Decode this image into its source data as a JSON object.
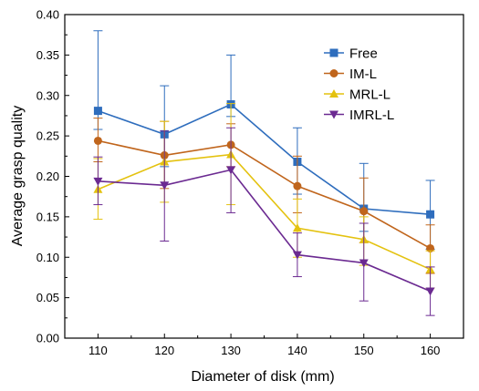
{
  "chart_data": {
    "type": "line",
    "xlabel": "Diameter of disk (mm)",
    "ylabel": "Average grasp quality",
    "x": [
      110,
      120,
      130,
      140,
      150,
      160
    ],
    "ylim": [
      0.0,
      0.4
    ],
    "yticks": [
      "0.00",
      "0.05",
      "0.10",
      "0.15",
      "0.20",
      "0.25",
      "0.30",
      "0.35",
      "0.40"
    ],
    "xticks": [
      "110",
      "120",
      "130",
      "140",
      "150",
      "160"
    ],
    "legend_position": "top-right",
    "grid": false,
    "series": [
      {
        "name": "Free",
        "color": "#2e6dbd",
        "marker": "square",
        "values": [
          0.281,
          0.252,
          0.289,
          0.218,
          0.16,
          0.153
        ],
        "err_low": [
          0.258,
          0.212,
          0.274,
          0.178,
          0.132,
          0.11
        ],
        "err_high": [
          0.38,
          0.312,
          0.35,
          0.26,
          0.216,
          0.195
        ]
      },
      {
        "name": "IM-L",
        "color": "#c0651c",
        "marker": "circle",
        "values": [
          0.244,
          0.226,
          0.239,
          0.188,
          0.157,
          0.111
        ],
        "err_low": [
          0.218,
          0.185,
          0.212,
          0.155,
          0.118,
          0.08
        ],
        "err_high": [
          0.272,
          0.268,
          0.265,
          0.225,
          0.198,
          0.14
        ]
      },
      {
        "name": "MRL-L",
        "color": "#e4c20f",
        "marker": "triangle-up",
        "values": [
          0.184,
          0.218,
          0.227,
          0.136,
          0.122,
          0.085
        ],
        "err_low": [
          0.147,
          0.168,
          0.165,
          0.1,
          0.09,
          0.062
        ],
        "err_high": [
          0.222,
          0.268,
          0.29,
          0.172,
          0.15,
          0.108
        ]
      },
      {
        "name": "IMRL-L",
        "color": "#6b2a91",
        "marker": "triangle-down",
        "values": [
          0.194,
          0.189,
          0.208,
          0.103,
          0.093,
          0.058
        ],
        "err_low": [
          0.165,
          0.12,
          0.155,
          0.076,
          0.046,
          0.028
        ],
        "err_high": [
          0.224,
          0.256,
          0.26,
          0.13,
          0.142,
          0.088
        ]
      }
    ]
  }
}
